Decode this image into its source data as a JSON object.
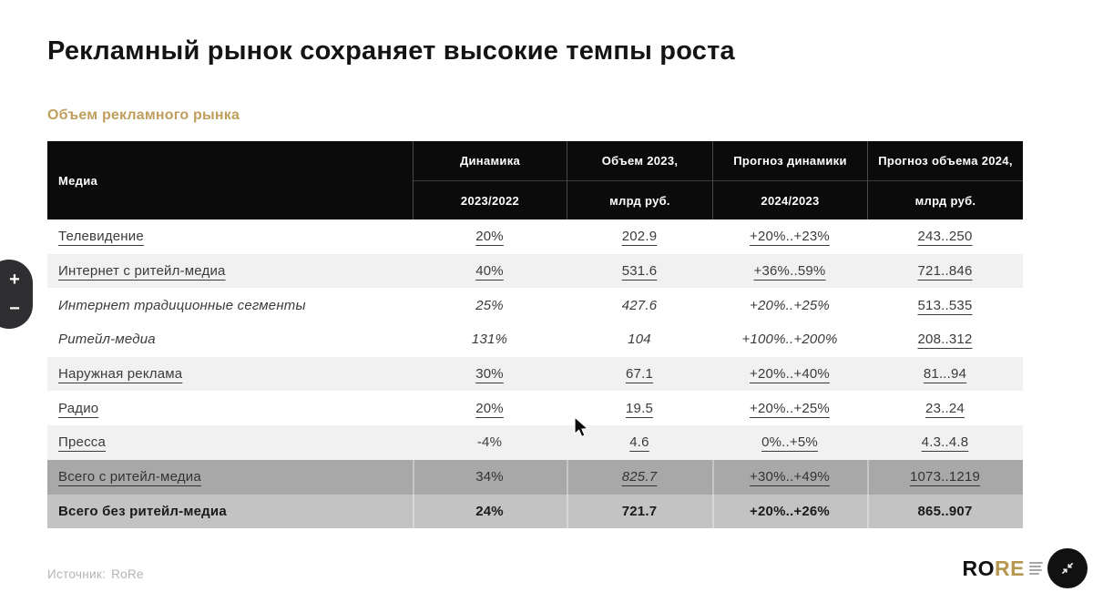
{
  "page": {
    "title": "Рекламный рынок сохраняет высокие темпы роста",
    "subtitle": "Объем рекламного рынка",
    "source_label": "Источник:",
    "source_value": "RoRe"
  },
  "zoom_control": {
    "plus": "+",
    "minus": "−"
  },
  "table": {
    "columns": [
      {
        "line1": "Медиа",
        "line2": ""
      },
      {
        "line1": "Динамика",
        "line2": "2023/2022"
      },
      {
        "line1": "Объем 2023,",
        "line2": "млрд руб."
      },
      {
        "line1": "Прогноз динамики",
        "line2": "2024/2023"
      },
      {
        "line1": "Прогноз объема 2024,",
        "line2": "млрд руб."
      }
    ],
    "rows": [
      {
        "bg": "white",
        "cells": [
          {
            "t": "Телевидение",
            "u": 1
          },
          {
            "t": "20%",
            "u": 1
          },
          {
            "t": "202.9",
            "u": 1
          },
          {
            "t": "+20%..+23%",
            "u": 1
          },
          {
            "t": "243..250",
            "u": 1
          }
        ]
      },
      {
        "bg": "stripe",
        "cells": [
          {
            "t": "Интернет с ритейл-медиа",
            "u": 1
          },
          {
            "t": "40%",
            "u": 1
          },
          {
            "t": "531.6",
            "u": 1
          },
          {
            "t": "+36%..59%",
            "u": 1
          },
          {
            "t": "721..846",
            "u": 1
          }
        ]
      },
      {
        "bg": "white",
        "cells": [
          {
            "t": "Интернет традиционные сегменты",
            "i": 1
          },
          {
            "t": "25%",
            "i": 1
          },
          {
            "t": "427.6",
            "i": 1
          },
          {
            "t": "+20%..+25%",
            "i": 1
          },
          {
            "t": "513..535",
            "u": 1
          }
        ]
      },
      {
        "bg": "white",
        "cells": [
          {
            "t": "Ритейл-медиа",
            "i": 1
          },
          {
            "t": "131%",
            "i": 1
          },
          {
            "t": "104",
            "i": 1
          },
          {
            "t": "+100%..+200%",
            "i": 1
          },
          {
            "t": "208..312",
            "u": 1
          }
        ]
      },
      {
        "bg": "stripe",
        "cells": [
          {
            "t": "Наружная реклама",
            "u": 1
          },
          {
            "t": "30%",
            "u": 1
          },
          {
            "t": "67.1",
            "u": 1
          },
          {
            "t": "+20%..+40%",
            "u": 1
          },
          {
            "t": "81...94",
            "u": 1
          }
        ]
      },
      {
        "bg": "white",
        "cells": [
          {
            "t": "Радио",
            "u": 1
          },
          {
            "t": "20%",
            "u": 1
          },
          {
            "t": "19.5",
            "u": 1
          },
          {
            "t": "+20%..+25%",
            "u": 1
          },
          {
            "t": "23..24",
            "u": 1
          }
        ]
      },
      {
        "bg": "stripe",
        "cells": [
          {
            "t": "Пресса",
            "u": 1
          },
          {
            "t": "-4%"
          },
          {
            "t": "4.6",
            "u": 1
          },
          {
            "t": "0%..+5%",
            "u": 1
          },
          {
            "t": "4.3..4.8",
            "u": 1
          }
        ]
      },
      {
        "bg": "total-dark",
        "cells": [
          {
            "t": "Всего с ритейл-медиа",
            "u": 1
          },
          {
            "t": "34%"
          },
          {
            "t": "825.7",
            "u": 1,
            "i": 1
          },
          {
            "t": "+30%..+49%",
            "u": 1
          },
          {
            "t": "1073..1219",
            "u": 1
          }
        ]
      },
      {
        "bg": "total-light",
        "cells": [
          {
            "t": "Всего без ритейл-медиа",
            "b": 1
          },
          {
            "t": "24%",
            "b": 1
          },
          {
            "t": "721.7",
            "b": 1
          },
          {
            "t": "+20%..+26%",
            "b": 1
          },
          {
            "t": "865..907",
            "b": 1
          }
        ]
      }
    ]
  },
  "logo": {
    "part1": "RO",
    "part2": "RE"
  },
  "colors": {
    "accent_gold": "#bf9e5e",
    "header_bg": "#0b0b0b",
    "stripe_bg": "#f1f1f1",
    "total_dark_bg": "#a8a8a8",
    "total_light_bg": "#c3c3c3",
    "text": "#3b3b3b",
    "source_text": "#b4b4b8"
  }
}
